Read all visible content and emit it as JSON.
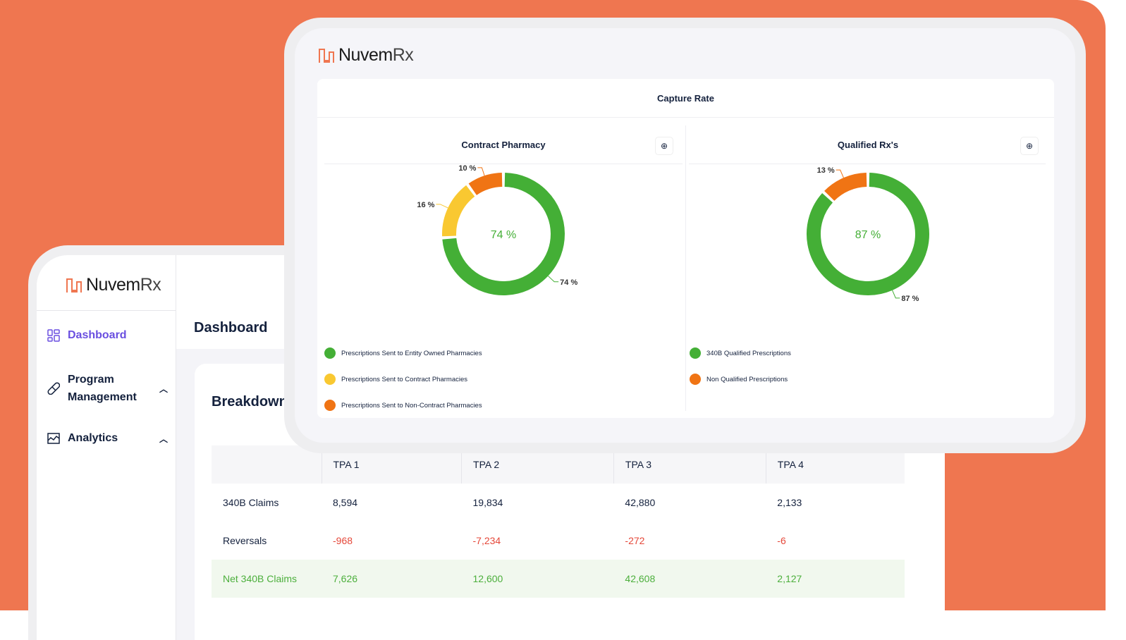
{
  "brand": {
    "name_a": "Nuvem",
    "name_b": "Rx",
    "color": "#EF7650"
  },
  "back": {
    "sidebar": {
      "items": [
        {
          "label": "Dashboard",
          "icon": "dashboard-grid-icon",
          "active": true
        },
        {
          "label": "Program",
          "label2": "Management",
          "icon": "pill-icon"
        },
        {
          "label": "Analytics",
          "icon": "chart-image-icon"
        }
      ]
    },
    "header_title": "Dashboard",
    "card_title": "Breakdown",
    "table": {
      "columns": [
        "",
        "TPA 1",
        "TPA 2",
        "TPA 3",
        "TPA 4"
      ],
      "rows": [
        {
          "label": "340B Claims",
          "values": [
            "8,594",
            "19,834",
            "42,880",
            "2,133"
          ]
        },
        {
          "label": "Reversals",
          "values": [
            "-968",
            "-7,234",
            "-272",
            "-6"
          ]
        },
        {
          "label": "Net 340B Claims",
          "values": [
            "7,626",
            "12,600",
            "42,608",
            "2,127"
          ]
        }
      ]
    }
  },
  "capture": {
    "title": "Capture Rate",
    "download_icon": "download-circle-icon",
    "chart_data": [
      {
        "type": "pie",
        "title": "Contract Pharmacy",
        "center_label": "74 %",
        "series": [
          {
            "name": "Prescriptions Sent to Entity Owned Pharmacies",
            "value": 74,
            "label": "74 %",
            "color": "#44AF36"
          },
          {
            "name": "Prescriptions Sent to Contract Pharmacies",
            "value": 16,
            "label": "16 %",
            "color": "#F9C831"
          },
          {
            "name": "Prescriptions Sent to Non-Contract Pharmacies",
            "value": 10,
            "label": "10 %",
            "color": "#F07414"
          }
        ]
      },
      {
        "type": "pie",
        "title": "Qualified Rx's",
        "center_label": "87 %",
        "series": [
          {
            "name": "340B Qualified Prescriptions",
            "value": 87,
            "label": "87 %",
            "color": "#44AF36"
          },
          {
            "name": "Non Qualified Prescriptions",
            "value": 13,
            "label": "13 %",
            "color": "#F07414"
          }
        ]
      }
    ]
  }
}
